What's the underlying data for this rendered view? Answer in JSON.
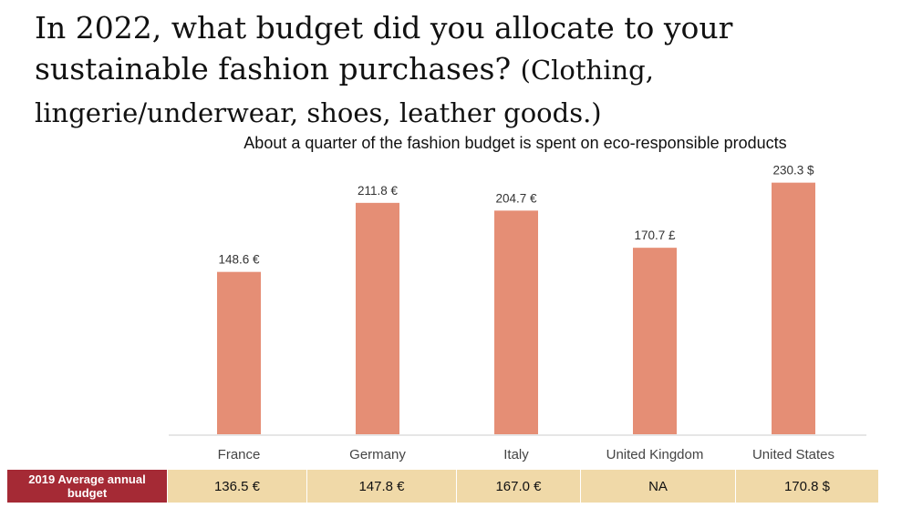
{
  "question": {
    "main": "In 2022, what budget did you allocate to your sustainable fashion purchases?",
    "detail": "(Clothing, lingerie/underwear, shoes, leather goods.)"
  },
  "chart_data": {
    "type": "bar",
    "title": "About a quarter of the fashion budget is spent on eco-responsible products",
    "categories": [
      "France",
      "Germany",
      "Italy",
      "United Kingdom",
      "United States"
    ],
    "values": [
      148.6,
      211.8,
      204.7,
      170.7,
      230.3
    ],
    "data_labels": [
      "148.6 €",
      "211.8 €",
      "204.7 €",
      "170.7 £",
      "230.3 $"
    ],
    "bar_color": "#e58e75",
    "grid": false,
    "xlabel": "",
    "ylabel": ""
  },
  "table": {
    "row_label": "2019 Average annual budget",
    "values": [
      "136.5 €",
      "147.8 €",
      "167.0 €",
      "NA",
      "170.8 $"
    ],
    "header_color": "#a52a35",
    "cell_color": "#f0d9a8"
  }
}
